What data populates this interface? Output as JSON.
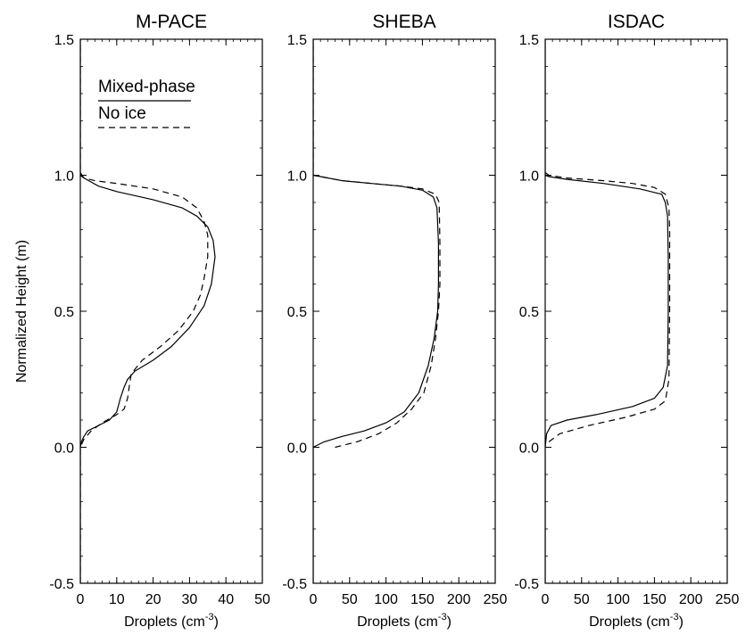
{
  "figure": {
    "ylabel": "Normalized Height (m)",
    "legend": {
      "placement": "top-left of first panel",
      "entries": [
        {
          "label": "Mixed-phase",
          "style": "solid"
        },
        {
          "label": "No ice",
          "style": "dashed"
        }
      ]
    }
  },
  "chart_data": [
    {
      "type": "line",
      "title": "M-PACE",
      "xlabel": "Droplets (cm",
      "xlabel_sup": "-3",
      "xlabel_suffix": ")",
      "xlim": [
        0,
        50
      ],
      "ylim": [
        -0.5,
        1.5
      ],
      "xticks": [
        0,
        10,
        20,
        30,
        40,
        50
      ],
      "yticks": [
        -0.5,
        0.0,
        0.5,
        1.0,
        1.5
      ],
      "ytick_labels": [
        "-0.5",
        "0.0",
        "0.5",
        "1.0",
        "1.5"
      ],
      "grid": false,
      "series": [
        {
          "name": "Mixed-phase",
          "style": "solid",
          "x": [
            0,
            0,
            0.3,
            1,
            2,
            5,
            8,
            10,
            11,
            12,
            13,
            15,
            20,
            25,
            30,
            34,
            36,
            37,
            36.5,
            35,
            32,
            28,
            20,
            10,
            5,
            3,
            1,
            0.5,
            0,
            0
          ],
          "y": [
            -0.5,
            0.0,
            0.02,
            0.04,
            0.06,
            0.08,
            0.1,
            0.13,
            0.18,
            0.22,
            0.25,
            0.28,
            0.32,
            0.37,
            0.44,
            0.52,
            0.6,
            0.7,
            0.76,
            0.81,
            0.85,
            0.88,
            0.91,
            0.94,
            0.96,
            0.975,
            0.99,
            1.0,
            1.01,
            1.5
          ]
        },
        {
          "name": "No ice",
          "style": "dashed",
          "x": [
            0,
            0,
            1,
            3,
            6,
            10,
            12,
            13,
            13.5,
            14,
            17,
            22,
            27,
            31,
            33,
            34,
            35,
            35,
            34,
            32,
            28,
            20,
            10,
            4,
            1,
            0,
            0
          ],
          "y": [
            -0.5,
            0.0,
            0.03,
            0.06,
            0.09,
            0.12,
            0.14,
            0.18,
            0.23,
            0.27,
            0.32,
            0.37,
            0.43,
            0.5,
            0.56,
            0.62,
            0.7,
            0.78,
            0.83,
            0.88,
            0.92,
            0.95,
            0.97,
            0.98,
            0.99,
            1.0,
            1.5
          ]
        }
      ]
    },
    {
      "type": "line",
      "title": "SHEBA",
      "xlabel": "Droplets (cm",
      "xlabel_sup": "-3",
      "xlabel_suffix": ")",
      "xlim": [
        0,
        250
      ],
      "ylim": [
        -0.5,
        1.5
      ],
      "xticks": [
        0,
        50,
        100,
        150,
        200,
        250
      ],
      "yticks": [
        -0.5,
        0.0,
        0.5,
        1.0,
        1.5
      ],
      "ytick_labels": [
        "-0.5",
        "0.0",
        "0.5",
        "1.0",
        "1.5"
      ],
      "grid": false,
      "series": [
        {
          "name": "Mixed-phase",
          "style": "solid",
          "x": [
            0,
            0,
            15,
            40,
            70,
            100,
            125,
            145,
            158,
            166,
            171,
            172,
            172,
            170,
            165,
            150,
            120,
            80,
            40,
            10,
            0,
            0
          ],
          "y": [
            -0.5,
            0.0,
            0.02,
            0.04,
            0.06,
            0.09,
            0.13,
            0.2,
            0.3,
            0.4,
            0.5,
            0.6,
            0.75,
            0.88,
            0.92,
            0.945,
            0.96,
            0.97,
            0.98,
            0.995,
            1.0,
            1.5
          ]
        },
        {
          "name": "No ice",
          "style": "dashed",
          "x": [
            30,
            60,
            90,
            115,
            135,
            152,
            162,
            168,
            172,
            174,
            174,
            173,
            168,
            150,
            120,
            80,
            40,
            10,
            0,
            0
          ],
          "y": [
            0.0,
            0.02,
            0.05,
            0.09,
            0.14,
            0.2,
            0.3,
            0.4,
            0.5,
            0.6,
            0.75,
            0.9,
            0.93,
            0.95,
            0.96,
            0.97,
            0.98,
            0.995,
            1.0,
            1.5
          ]
        }
      ]
    },
    {
      "type": "line",
      "title": "ISDAC",
      "xlabel": "Droplets (cm",
      "xlabel_sup": "-3",
      "xlabel_suffix": ")",
      "xlim": [
        0,
        250
      ],
      "ylim": [
        -0.5,
        1.5
      ],
      "xticks": [
        0,
        50,
        100,
        150,
        200,
        250
      ],
      "yticks": [
        -0.5,
        0.0,
        0.5,
        1.0,
        1.5
      ],
      "ytick_labels": [
        "-0.5",
        "0.0",
        "0.5",
        "1.0",
        "1.5"
      ],
      "grid": false,
      "series": [
        {
          "name": "Mixed-phase",
          "style": "solid",
          "x": [
            0,
            0,
            2,
            8,
            30,
            70,
            120,
            150,
            162,
            168,
            169,
            169,
            168,
            165,
            160,
            130,
            80,
            30,
            5,
            0,
            0
          ],
          "y": [
            -0.5,
            0.0,
            0.05,
            0.08,
            0.1,
            0.12,
            0.15,
            0.18,
            0.22,
            0.3,
            0.5,
            0.7,
            0.85,
            0.9,
            0.93,
            0.95,
            0.97,
            0.985,
            0.995,
            1.0,
            1.5
          ]
        },
        {
          "name": "No ice",
          "style": "dashed",
          "x": [
            5,
            20,
            60,
            110,
            150,
            165,
            170,
            171,
            171,
            170,
            165,
            150,
            120,
            80,
            30,
            5,
            0
          ],
          "y": [
            0.02,
            0.05,
            0.08,
            0.11,
            0.14,
            0.17,
            0.25,
            0.5,
            0.8,
            0.88,
            0.93,
            0.955,
            0.97,
            0.98,
            0.99,
            1.0,
            1.01
          ]
        }
      ]
    }
  ]
}
